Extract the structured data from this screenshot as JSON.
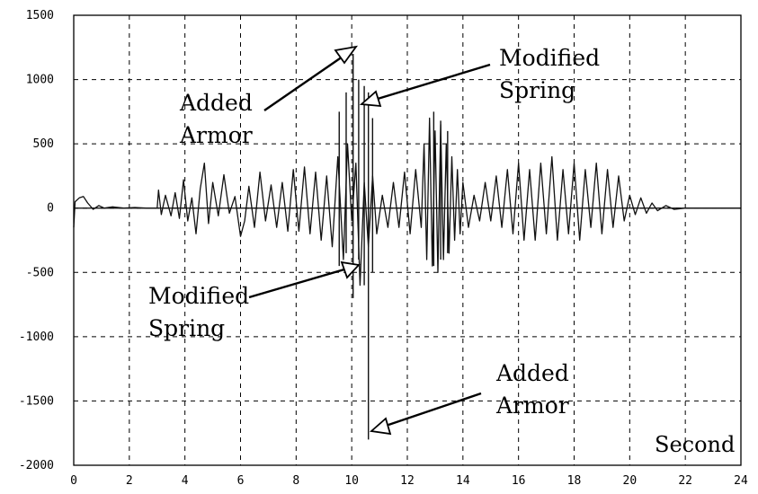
{
  "chart_data": {
    "type": "line",
    "title": "",
    "xlabel": "Second",
    "ylabel": "",
    "xlim": [
      0,
      24
    ],
    "ylim": [
      -2000,
      1500
    ],
    "xticks": [
      0,
      2,
      4,
      6,
      8,
      10,
      12,
      14,
      16,
      18,
      20,
      22,
      24
    ],
    "yticks": [
      1500,
      1000,
      500,
      0,
      -500,
      -1000,
      -1500,
      -2000
    ],
    "grid": true,
    "series": [
      {
        "x": [
          0,
          0.05,
          0.2,
          0.35,
          0.5,
          0.7,
          0.9,
          1.1,
          1.4,
          1.8,
          2.2,
          2.6,
          3.0,
          3.05,
          3.15,
          3.3,
          3.5,
          3.65,
          3.8,
          3.95,
          4.1,
          4.25,
          4.4,
          4.55,
          4.7,
          4.85,
          5.0,
          5.2,
          5.4,
          5.6,
          5.8,
          6.0,
          6.15,
          6.3,
          6.5,
          6.7,
          6.9,
          7.1,
          7.3,
          7.5,
          7.7,
          7.9,
          8.1,
          8.3,
          8.5,
          8.7,
          8.9,
          9.1,
          9.3,
          9.5,
          9.7,
          9.85,
          10.0,
          10.15,
          10.3,
          10.45,
          10.6,
          10.75,
          10.9,
          11.1,
          11.3,
          11.5,
          11.7,
          11.9,
          12.1,
          12.3,
          12.5,
          12.6,
          12.7,
          12.8,
          12.9,
          13.0,
          13.1,
          13.2,
          13.3,
          13.4,
          13.5,
          13.6,
          13.7,
          13.8,
          13.9,
          14.0,
          14.2,
          14.4,
          14.6,
          14.8,
          15.0,
          15.2,
          15.4,
          15.6,
          15.8,
          16.0,
          16.2,
          16.4,
          16.6,
          16.8,
          17.0,
          17.2,
          17.4,
          17.6,
          17.8,
          18.0,
          18.2,
          18.4,
          18.6,
          18.8,
          19.0,
          19.2,
          19.4,
          19.6,
          19.8,
          20.0,
          20.2,
          20.4,
          20.6,
          20.8,
          21.0,
          21.3,
          21.6,
          22.0,
          22.5,
          23.0,
          24.0
        ],
        "y": [
          -150,
          50,
          80,
          90,
          40,
          -10,
          20,
          0,
          10,
          0,
          5,
          0,
          0,
          140,
          -50,
          100,
          -60,
          120,
          -80,
          220,
          -100,
          80,
          -200,
          150,
          350,
          -120,
          200,
          -60,
          260,
          -40,
          90,
          -220,
          -100,
          170,
          -150,
          280,
          -100,
          180,
          -150,
          200,
          -180,
          300,
          -180,
          320,
          -200,
          280,
          -250,
          250,
          -300,
          400,
          -400,
          500,
          -100,
          350,
          -600,
          200,
          -300,
          250,
          -200,
          100,
          -150,
          200,
          -150,
          280,
          -200,
          300,
          -150,
          500,
          -400,
          700,
          -450,
          600,
          -500,
          650,
          -400,
          500,
          -350,
          400,
          -250,
          300,
          -200,
          200,
          -150,
          100,
          -100,
          200,
          -100,
          250,
          -150,
          300,
          -200,
          350,
          -250,
          300,
          -250,
          350,
          -200,
          400,
          -250,
          300,
          -200,
          350,
          -250,
          300,
          -150,
          350,
          -200,
          300,
          -150,
          250,
          -100,
          100,
          -50,
          80,
          -40,
          40,
          -20,
          20,
          -10,
          0,
          0,
          0,
          0
        ]
      }
    ],
    "spikes": [
      {
        "x": 9.55,
        "y1": -450,
        "y2": 750
      },
      {
        "x": 9.8,
        "y1": -350,
        "y2": 900
      },
      {
        "x": 10.05,
        "y1": -700,
        "y2": 1200
      },
      {
        "x": 10.25,
        "y1": -400,
        "y2": 1000
      },
      {
        "x": 10.45,
        "y1": -600,
        "y2": 950
      },
      {
        "x": 10.6,
        "y1": -1800,
        "y2": 900
      },
      {
        "x": 10.75,
        "y1": -500,
        "y2": 700
      },
      {
        "x": 12.95,
        "y1": -450,
        "y2": 750
      },
      {
        "x": 13.2,
        "y1": -400,
        "y2": 680
      },
      {
        "x": 13.45,
        "y1": -350,
        "y2": 600
      }
    ],
    "annotations": [
      {
        "lines": [
          "Added",
          "Armor"
        ]
      },
      {
        "lines": [
          "Modified",
          "Spring"
        ]
      },
      {
        "lines": [
          "Modified",
          "Spring"
        ]
      },
      {
        "lines": [
          "Added",
          "Armor"
        ]
      }
    ]
  }
}
